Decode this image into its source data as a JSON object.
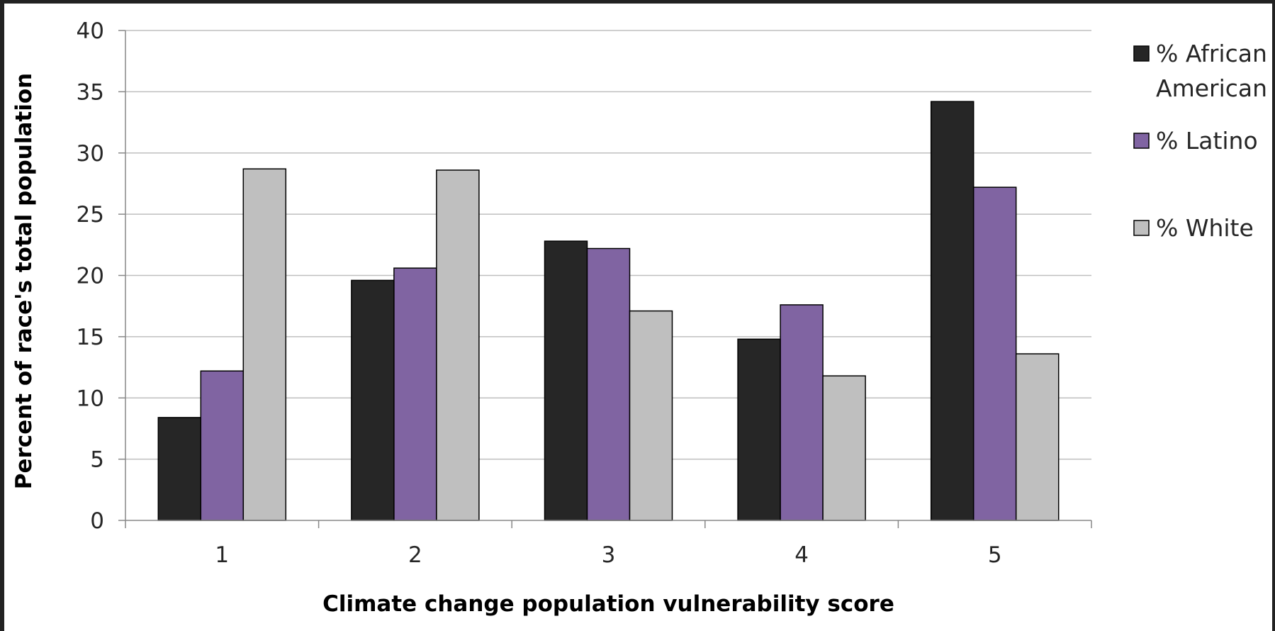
{
  "chart_data": {
    "type": "bar",
    "title": "",
    "xlabel": "Climate change population vulnerability score",
    "ylabel": "Percent of race's total population",
    "categories": [
      "1",
      "2",
      "3",
      "4",
      "5"
    ],
    "ylim": [
      0,
      40
    ],
    "yticks": [
      0,
      5,
      10,
      15,
      20,
      25,
      30,
      35,
      40
    ],
    "grid": true,
    "legend_position": "right",
    "series": [
      {
        "name": "% African American",
        "legend_lines": [
          "% African",
          "American"
        ],
        "color": "#262626",
        "values": [
          8.4,
          19.6,
          22.8,
          14.8,
          34.2
        ]
      },
      {
        "name": "% Latino",
        "legend_lines": [
          "% Latino"
        ],
        "color": "#8064A2",
        "values": [
          12.2,
          20.6,
          22.2,
          17.6,
          27.2
        ]
      },
      {
        "name": "% White",
        "legend_lines": [
          "% White"
        ],
        "color": "#BFBFBF",
        "values": [
          28.7,
          28.6,
          17.1,
          11.8,
          13.6
        ]
      }
    ]
  }
}
